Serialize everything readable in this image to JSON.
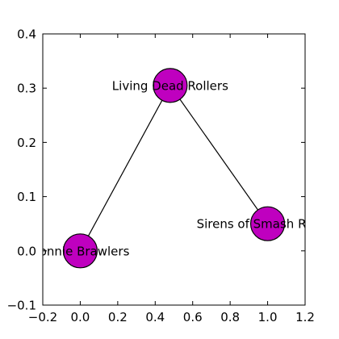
{
  "chart_data": {
    "type": "scatter",
    "title": "",
    "xlabel": "",
    "ylabel": "",
    "xlim": [
      -0.2,
      1.2
    ],
    "ylim": [
      -0.1,
      0.4
    ],
    "x_ticks": [
      -0.2,
      0.0,
      0.2,
      0.4,
      0.6,
      0.8,
      1.0,
      1.2
    ],
    "x_tick_labels": [
      "−0.2",
      "0.0",
      "0.2",
      "0.4",
      "0.6",
      "0.8",
      "1.0",
      "1.2"
    ],
    "y_ticks": [
      -0.1,
      0.0,
      0.1,
      0.2,
      0.3,
      0.4
    ],
    "y_tick_labels": [
      "−0.1",
      "0.0",
      "0.1",
      "0.2",
      "0.3",
      "0.4"
    ],
    "grid": false,
    "legend": "none",
    "node_color": "#bf00bf",
    "edge_color": "#000000",
    "nodes": [
      {
        "label": "Living Dead Rollers",
        "x": 0.48,
        "y": 0.305
      },
      {
        "label": "Sirens of Smash Rollers",
        "x": 1.0,
        "y": 0.05
      },
      {
        "label": "Bonnie Brawlers",
        "x": 0.0,
        "y": 0.0
      }
    ],
    "edges": [
      [
        0,
        1
      ],
      [
        0,
        2
      ]
    ]
  }
}
